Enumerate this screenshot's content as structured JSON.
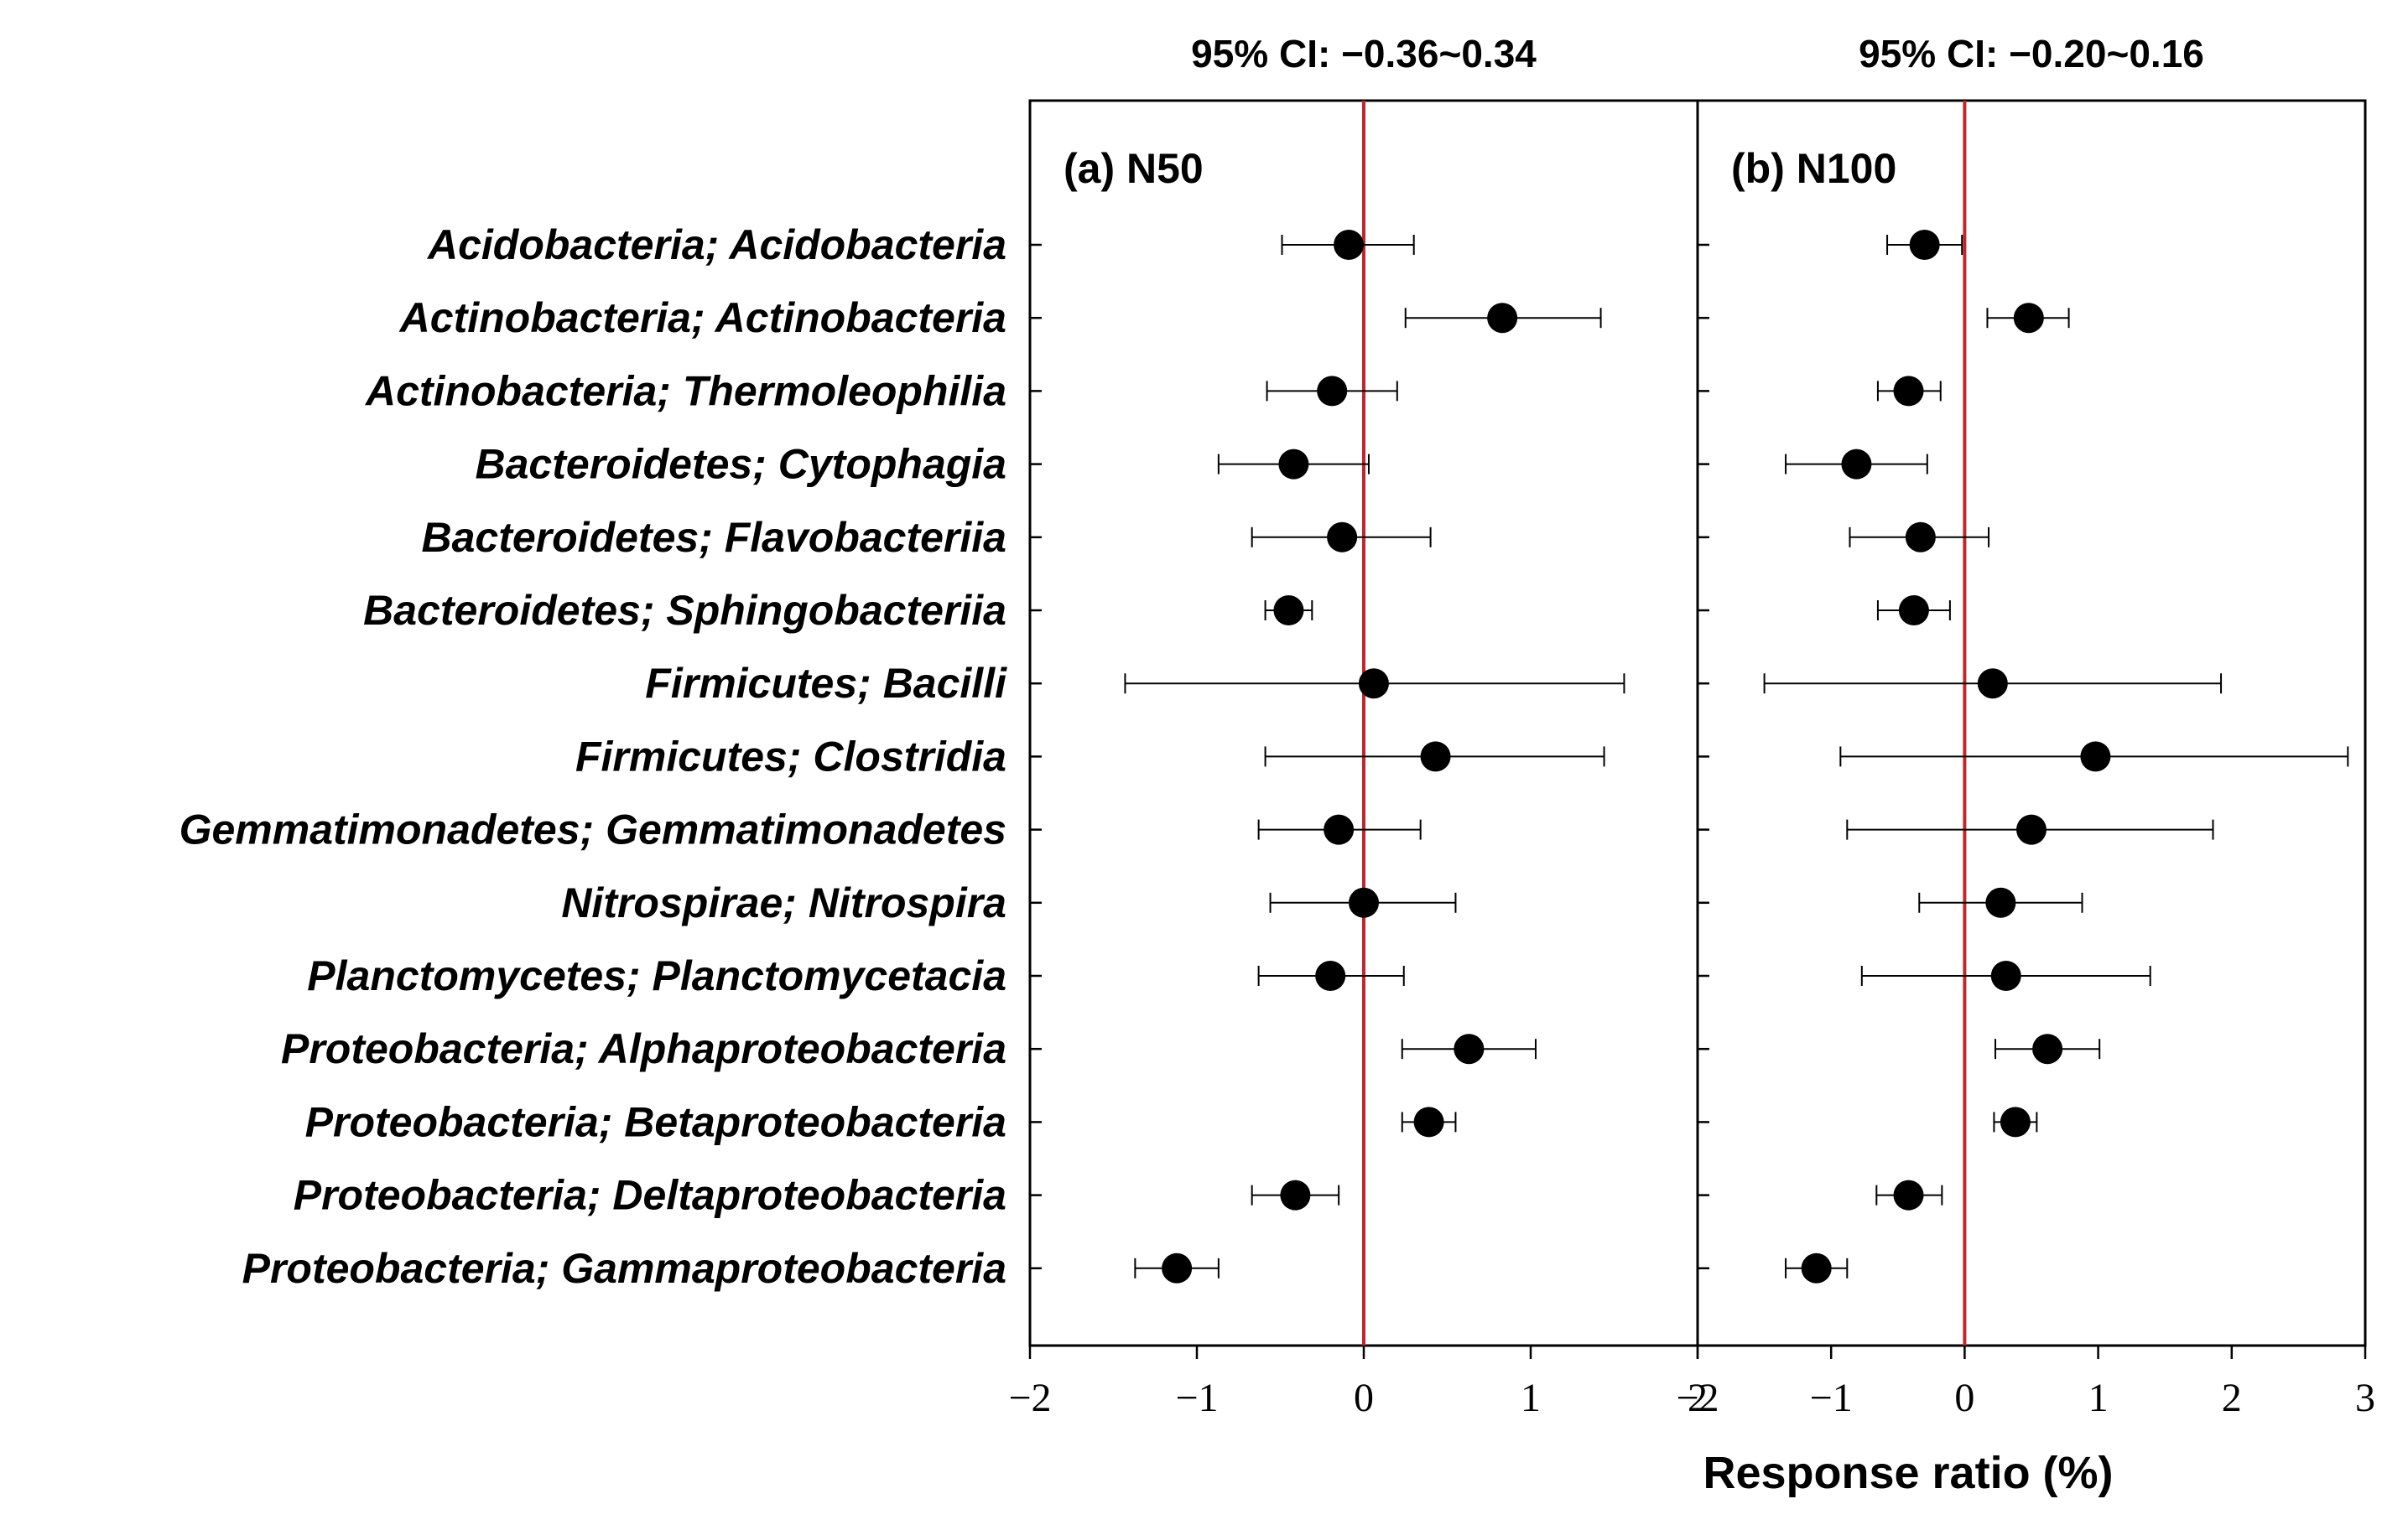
{
  "chart_data": {
    "type": "forest",
    "xlabel": "Response ratio (%)",
    "colors": {
      "zero_line": "#c0272d",
      "marker": "#000000",
      "axis": "#000000"
    },
    "categories": [
      "Acidobacteria; Acidobacteria",
      "Actinobacteria; Actinobacteria",
      "Actinobacteria; Thermoleophilia",
      "Bacteroidetes; Cytophagia",
      "Bacteroidetes; Flavobacteriia",
      "Bacteroidetes; Sphingobacteriia",
      "Firmicutes; Bacilli",
      "Firmicutes; Clostridia",
      "Gemmatimonadetes; Gemmatimonadetes",
      "Nitrospirae; Nitrospira",
      "Planctomycetes; Planctomycetacia",
      "Proteobacteria; Alphaproteobacteria",
      "Proteobacteria; Betaproteobacteria",
      "Proteobacteria; Deltaproteobacteria",
      "Proteobacteria; Gammaproteobacteria"
    ],
    "panels": [
      {
        "label": "(a) N50",
        "ci_title": "95% CI: −0.36~0.34",
        "xlim": [
          -2,
          2
        ],
        "xticks": [
          -2,
          -1,
          0,
          1,
          2
        ],
        "tick_labels": [
          "−2",
          "−1",
          "0",
          "1",
          "2"
        ],
        "mean": [
          -0.09,
          0.83,
          -0.19,
          -0.42,
          -0.13,
          -0.45,
          0.06,
          0.43,
          -0.15,
          0.0,
          -0.2,
          0.63,
          0.39,
          -0.41,
          -1.12
        ],
        "lower": [
          -0.49,
          0.25,
          -0.58,
          -0.87,
          -0.67,
          -0.59,
          -1.43,
          -0.59,
          -0.63,
          -0.56,
          -0.63,
          0.23,
          0.23,
          -0.67,
          -1.37
        ],
        "upper": [
          0.3,
          1.42,
          0.2,
          0.03,
          0.4,
          -0.31,
          1.56,
          1.44,
          0.34,
          0.55,
          0.24,
          1.03,
          0.55,
          -0.15,
          -0.87
        ]
      },
      {
        "label": "(b) N100",
        "ci_title": "95% CI: −0.20~0.16",
        "xlim": [
          -2,
          3
        ],
        "xticks": [
          -2,
          -1,
          0,
          1,
          2,
          3
        ],
        "tick_labels": [
          "−2",
          "−1",
          "0",
          "1",
          "2",
          "3"
        ],
        "mean": [
          -0.3,
          0.48,
          -0.42,
          -0.81,
          -0.33,
          -0.38,
          0.21,
          0.98,
          0.5,
          0.27,
          0.31,
          0.62,
          0.38,
          -0.42,
          -1.11
        ],
        "lower": [
          -0.58,
          0.17,
          -0.65,
          -1.34,
          -0.86,
          -0.65,
          -1.5,
          -0.93,
          -0.88,
          -0.34,
          -0.77,
          0.23,
          0.22,
          -0.66,
          -1.34
        ],
        "upper": [
          -0.02,
          0.78,
          -0.18,
          -0.28,
          0.18,
          -0.11,
          1.92,
          2.87,
          1.86,
          0.88,
          1.39,
          1.01,
          0.54,
          -0.17,
          -0.88
        ]
      }
    ]
  }
}
